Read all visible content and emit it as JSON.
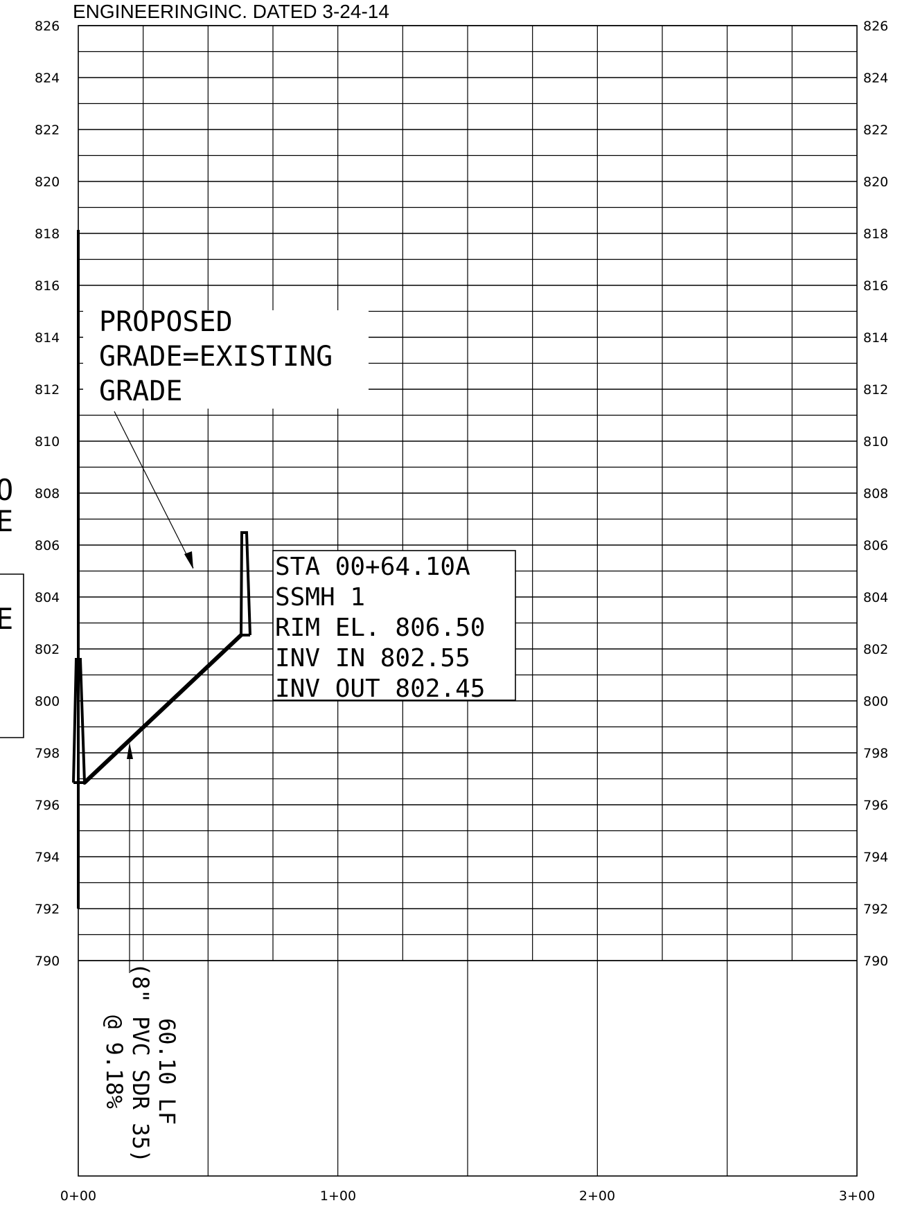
{
  "header": {
    "text": "ENGINEERINGINC. DATED 3-24-14"
  },
  "profile": {
    "elevation_labels": [
      "826",
      "824",
      "822",
      "820",
      "818",
      "816",
      "814",
      "812",
      "810",
      "808",
      "806",
      "804",
      "802",
      "800",
      "798",
      "796",
      "794",
      "792",
      "790"
    ],
    "station_labels": [
      "0+00",
      "1+00",
      "2+00",
      "3+00"
    ],
    "edge_fragments": [
      "O",
      "E",
      "E"
    ]
  },
  "callouts": {
    "proposed_grade": [
      "PROPOSED",
      "GRADE=EXISTING",
      "GRADE"
    ],
    "manhole": [
      "STA 00+64.10A",
      "SSMH 1",
      "RIM EL. 806.50",
      "INV IN 802.55",
      "INV OUT 802.45"
    ],
    "pipe": [
      "60.10 LF",
      "(8\" PVC SDR 35)",
      "@ 9.18%"
    ]
  }
}
